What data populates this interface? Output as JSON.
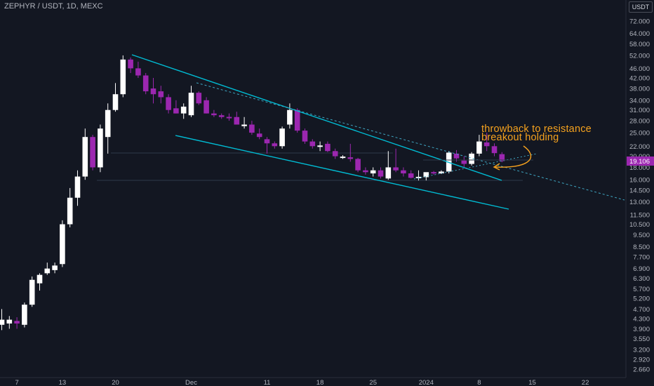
{
  "symbol_title": "ZEPHYR / USDT, 1D, MEXC",
  "currency": "USDT",
  "annotation": [
    "throwback to resistance",
    "breakout holding"
  ],
  "colors": {
    "background": "#131722",
    "up_candle": "#ffffff",
    "down_candle": "#9c27b0",
    "trendline": "#00bcd4",
    "annotation": "#f6a21e",
    "last_price_bg": "#9c27b0"
  },
  "chart_data": {
    "type": "candlestick",
    "title": "ZEPHYR / USDT, 1D, MEXC",
    "y_scale": "log",
    "ylim": [
      2.4,
      90
    ],
    "y_ticks": [
      "72.000",
      "64.000",
      "58.000",
      "52.000",
      "46.000",
      "42.000",
      "38.000",
      "34.000",
      "31.000",
      "28.000",
      "25.000",
      "22.000",
      "20.000",
      "18.000",
      "16.000",
      "14.500",
      "13.000",
      "11.500",
      "10.500",
      "9.500",
      "8.500",
      "7.700",
      "6.900",
      "6.300",
      "5.700",
      "5.200",
      "4.700",
      "4.300",
      "3.900",
      "3.550",
      "3.200",
      "2.920",
      "2.660"
    ],
    "x_ticks": [
      "7",
      "13",
      "20",
      "Dec",
      "11",
      "18",
      "25",
      "2024",
      "8",
      "15",
      "22"
    ],
    "last_price": "19.106",
    "candles": [
      {
        "o": 4.05,
        "h": 4.7,
        "l": 3.85,
        "c": 4.25
      },
      {
        "o": 4.1,
        "h": 4.4,
        "l": 3.9,
        "c": 4.25
      },
      {
        "o": 4.2,
        "h": 4.35,
        "l": 3.9,
        "c": 4.1
      },
      {
        "o": 4.05,
        "h": 5.0,
        "l": 3.95,
        "c": 4.9
      },
      {
        "o": 4.9,
        "h": 6.4,
        "l": 4.8,
        "c": 6.2
      },
      {
        "o": 6.0,
        "h": 6.6,
        "l": 5.6,
        "c": 6.5
      },
      {
        "o": 6.6,
        "h": 7.3,
        "l": 6.5,
        "c": 6.9
      },
      {
        "o": 6.8,
        "h": 7.3,
        "l": 6.6,
        "c": 7.1
      },
      {
        "o": 7.2,
        "h": 10.9,
        "l": 7.0,
        "c": 10.5
      },
      {
        "o": 10.5,
        "h": 14.8,
        "l": 10.2,
        "c": 13.5
      },
      {
        "o": 13.5,
        "h": 17.5,
        "l": 12.5,
        "c": 16.5
      },
      {
        "o": 16.5,
        "h": 26.0,
        "l": 16.0,
        "c": 24.0
      },
      {
        "o": 24.0,
        "h": 24.5,
        "l": 17.5,
        "c": 18.0
      },
      {
        "o": 18.0,
        "h": 27.0,
        "l": 17.2,
        "c": 26.0
      },
      {
        "o": 24.0,
        "h": 33.0,
        "l": 20.5,
        "c": 31.0
      },
      {
        "o": 31.0,
        "h": 40.0,
        "l": 30.5,
        "c": 36.0
      },
      {
        "o": 36.0,
        "h": 52.0,
        "l": 35.0,
        "c": 50.0
      },
      {
        "o": 50.0,
        "h": 51.0,
        "l": 44.0,
        "c": 46.0
      },
      {
        "o": 46.0,
        "h": 49.0,
        "l": 42.0,
        "c": 43.0
      },
      {
        "o": 43.0,
        "h": 44.0,
        "l": 36.0,
        "c": 37.0
      },
      {
        "o": 38.0,
        "h": 42.0,
        "l": 33.0,
        "c": 36.0
      },
      {
        "o": 37.0,
        "h": 39.0,
        "l": 33.0,
        "c": 35.0
      },
      {
        "o": 35.0,
        "h": 36.0,
        "l": 30.0,
        "c": 31.0
      },
      {
        "o": 31.5,
        "h": 34.0,
        "l": 30.0,
        "c": 30.0
      },
      {
        "o": 30.0,
        "h": 33.0,
        "l": 28.5,
        "c": 32.0
      },
      {
        "o": 29.5,
        "h": 39.0,
        "l": 29.0,
        "c": 36.5
      },
      {
        "o": 36.5,
        "h": 37.0,
        "l": 32.5,
        "c": 33.0
      },
      {
        "o": 34.0,
        "h": 35.0,
        "l": 30.0,
        "c": 30.0
      },
      {
        "o": 30.0,
        "h": 31.0,
        "l": 29.0,
        "c": 29.5
      },
      {
        "o": 29.5,
        "h": 30.0,
        "l": 28.5,
        "c": 29.0
      },
      {
        "o": 29.0,
        "h": 30.0,
        "l": 28.0,
        "c": 28.7
      },
      {
        "o": 29.0,
        "h": 30.5,
        "l": 27.0,
        "c": 27.0
      },
      {
        "o": 26.6,
        "h": 29.0,
        "l": 26.0,
        "c": 27.0
      },
      {
        "o": 27.0,
        "h": 28.0,
        "l": 24.5,
        "c": 25.0
      },
      {
        "o": 24.8,
        "h": 26.0,
        "l": 23.5,
        "c": 24.0
      },
      {
        "o": 23.5,
        "h": 24.0,
        "l": 20.5,
        "c": 22.6
      },
      {
        "o": 22.6,
        "h": 23.0,
        "l": 21.5,
        "c": 22.0
      },
      {
        "o": 22.0,
        "h": 26.5,
        "l": 21.5,
        "c": 26.0
      },
      {
        "o": 27.0,
        "h": 33.0,
        "l": 26.0,
        "c": 31.0
      },
      {
        "o": 31.0,
        "h": 31.5,
        "l": 25.0,
        "c": 25.5
      },
      {
        "o": 25.5,
        "h": 26.0,
        "l": 22.5,
        "c": 23.0
      },
      {
        "o": 23.0,
        "h": 23.5,
        "l": 21.5,
        "c": 22.0
      },
      {
        "o": 22.0,
        "h": 23.0,
        "l": 21.0,
        "c": 22.0
      },
      {
        "o": 22.5,
        "h": 23.0,
        "l": 20.8,
        "c": 21.0
      },
      {
        "o": 21.0,
        "h": 21.5,
        "l": 19.5,
        "c": 20.0
      },
      {
        "o": 19.8,
        "h": 20.2,
        "l": 19.5,
        "c": 19.8
      },
      {
        "o": 19.8,
        "h": 22.5,
        "l": 19.0,
        "c": 19.5
      },
      {
        "o": 19.5,
        "h": 19.7,
        "l": 17.2,
        "c": 17.5
      },
      {
        "o": 17.5,
        "h": 18.0,
        "l": 16.8,
        "c": 17.2
      },
      {
        "o": 17.0,
        "h": 18.0,
        "l": 16.5,
        "c": 17.5
      },
      {
        "o": 17.5,
        "h": 18.0,
        "l": 16.2,
        "c": 16.5
      },
      {
        "o": 16.2,
        "h": 21.0,
        "l": 16.0,
        "c": 18.0
      },
      {
        "o": 18.0,
        "h": 21.5,
        "l": 17.2,
        "c": 17.5
      },
      {
        "o": 17.5,
        "h": 18.0,
        "l": 16.5,
        "c": 17.0
      },
      {
        "o": 17.0,
        "h": 17.5,
        "l": 16.2,
        "c": 16.3
      },
      {
        "o": 16.3,
        "h": 17.5,
        "l": 15.9,
        "c": 16.4
      },
      {
        "o": 16.4,
        "h": 17.0,
        "l": 15.9,
        "c": 17.2
      },
      {
        "o": 17.2,
        "h": 17.4,
        "l": 16.8,
        "c": 17.0
      },
      {
        "o": 17.0,
        "h": 17.5,
        "l": 16.9,
        "c": 17.3
      },
      {
        "o": 17.3,
        "h": 21.0,
        "l": 17.0,
        "c": 20.7
      },
      {
        "o": 20.5,
        "h": 21.2,
        "l": 19.0,
        "c": 19.6
      },
      {
        "o": 19.2,
        "h": 20.0,
        "l": 18.0,
        "c": 18.6
      },
      {
        "o": 18.6,
        "h": 20.8,
        "l": 18.3,
        "c": 20.5
      },
      {
        "o": 20.5,
        "h": 24.5,
        "l": 20.0,
        "c": 23.0
      },
      {
        "o": 22.8,
        "h": 25.0,
        "l": 21.0,
        "c": 22.0
      },
      {
        "o": 22.0,
        "h": 22.6,
        "l": 20.0,
        "c": 20.6
      },
      {
        "o": 20.4,
        "h": 20.8,
        "l": 18.9,
        "c": 19.1
      }
    ]
  }
}
